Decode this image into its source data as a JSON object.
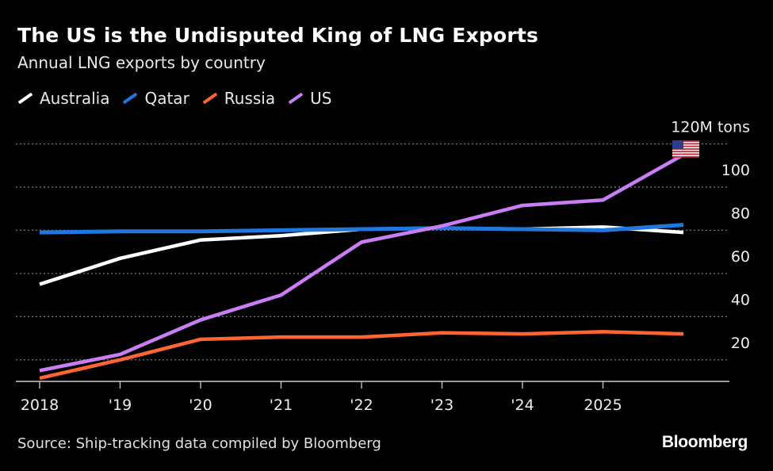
{
  "chart_data": {
    "type": "line",
    "title": "The US is the Undisputed King of LNG Exports",
    "subtitle": "Annual LNG exports by country",
    "x": [
      "2018",
      "'19",
      "'20",
      "'21",
      "'22",
      "'23",
      "'24",
      "2025",
      ""
    ],
    "series": [
      {
        "name": "Australia",
        "color": "#ffffff",
        "values": [
          55,
          67,
          75.5,
          77.5,
          80.5,
          81,
          80.5,
          81.5,
          79
        ]
      },
      {
        "name": "Qatar",
        "color": "#1f78e0",
        "values": [
          79,
          79.5,
          79.5,
          80,
          80.5,
          81,
          80.5,
          80,
          82.5
        ]
      },
      {
        "name": "Russia",
        "color": "#ff6633",
        "values": [
          11.5,
          20,
          29.5,
          30.5,
          30.5,
          32.5,
          32,
          33,
          32
        ]
      },
      {
        "name": "US",
        "color": "#c97ef5",
        "values": [
          15,
          22.5,
          38.5,
          50,
          74.5,
          82,
          91.5,
          94,
          115
        ]
      }
    ],
    "yticks": [
      20,
      40,
      60,
      80,
      100,
      120
    ],
    "ytick_labels": [
      "20",
      "40",
      "60",
      "80",
      "100",
      "120M tons"
    ],
    "ylim": [
      10,
      120
    ],
    "grid": true,
    "legend_position": "top-left",
    "annotation_icon": "us-flag-icon",
    "source": "Source: Ship-tracking data compiled by Bloomberg",
    "brand": "Bloomberg"
  }
}
